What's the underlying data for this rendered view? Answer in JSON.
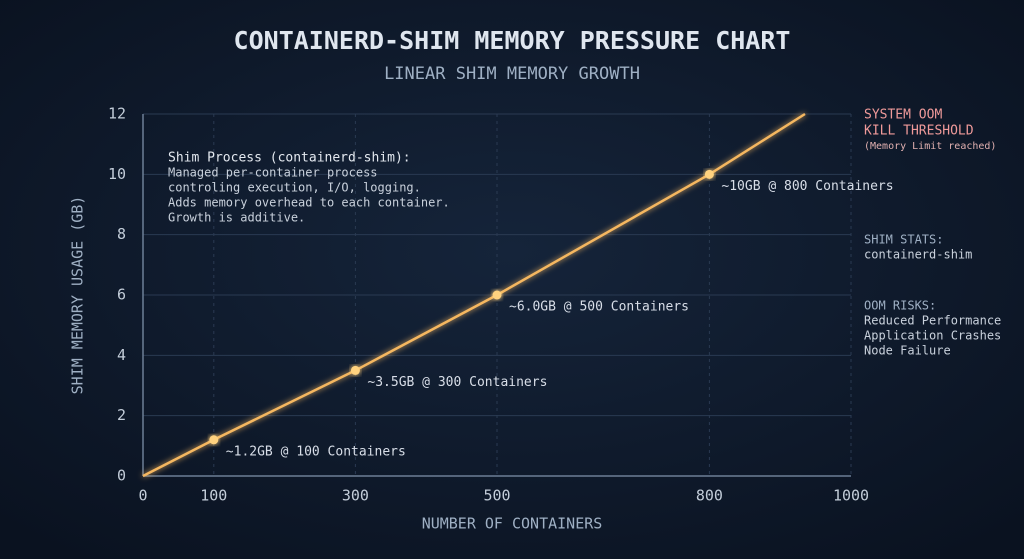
{
  "chart_data": {
    "type": "line",
    "title": "CONTAINERD-SHIM MEMORY PRESSURE CHART",
    "subtitle": "LINEAR SHIM MEMORY GROWTH",
    "x_label": "NUMBER OF CONTAINERS",
    "y_label": "SHIM MEMORY USAGE (GB)",
    "x": [
      0,
      100,
      300,
      500,
      800,
      935
    ],
    "values": [
      0,
      1.2,
      3.5,
      6.0,
      10,
      12
    ],
    "value_labels": [
      null,
      "~1.2GB @ 100 Containers",
      "~3.5GB @ 300 Containers",
      "~6.0GB @ 500 Containers",
      "~10GB @ 800 Containers",
      null
    ],
    "color": "#f5b760",
    "xlim": [
      0,
      1000
    ],
    "xticks": [
      0,
      100,
      300,
      500,
      800,
      1000
    ],
    "ylim": [
      0,
      12
    ],
    "yticks": [
      0,
      2,
      4,
      6,
      8,
      10,
      12
    ],
    "grid": true,
    "threshold": {
      "value": 12,
      "label_lines": [
        "SYSTEM OOM",
        "KILL THRESHOLD"
      ],
      "note": "(Memory Limit reached)",
      "color": "#e0505a"
    },
    "info_box": {
      "title": "Shim Process (containerd-shim):",
      "lines": [
        "Managed per-container process",
        "controling execution, I/O, logging.",
        "Adds memory overhead to each container.",
        "Growth is additive."
      ]
    },
    "side_panels": [
      {
        "heading": "SHIM STATS:",
        "items": [
          "containerd-shim"
        ]
      },
      {
        "heading": "OOM RISKS:",
        "items": [
          "Reduced Performance",
          "Application Crashes",
          "Node Failure"
        ]
      }
    ]
  }
}
